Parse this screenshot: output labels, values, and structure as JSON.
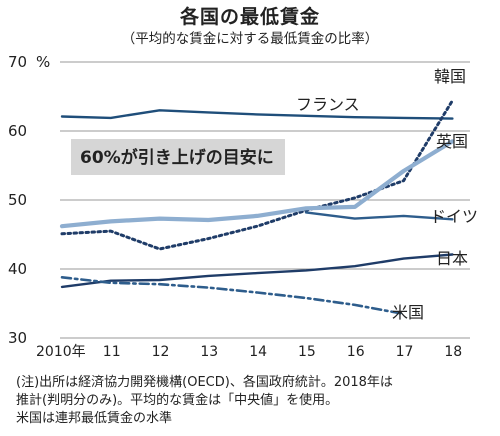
{
  "title": "各国の最低賃金",
  "subtitle": "（平均的な賃金に対する最低賃金の比率）",
  "notes": [
    "(注)出所は経済協力開発機構(OECD)、各国政府統計。2018年は",
    "推計(判明分のみ)。平均的な賃金は「中央値」を使用。",
    "米国は連邦最低賃金の水準"
  ],
  "chart_data": {
    "type": "line",
    "title": "各国の最低賃金",
    "subtitle": "（平均的な賃金に対する最低賃金の比率）",
    "ylabel": "%",
    "ylim": [
      30,
      70
    ],
    "yticks": [
      30,
      40,
      50,
      60,
      70
    ],
    "x": [
      2010,
      2011,
      2012,
      2013,
      2014,
      2015,
      2016,
      2017,
      2018
    ],
    "xtick_labels": [
      "2010年",
      "11",
      "12",
      "13",
      "14",
      "15",
      "16",
      "17",
      "18"
    ],
    "grid": "horizontal",
    "annotation": "60%が引き上げの目安に",
    "series": [
      {
        "name": "フランス",
        "color": "#1f4e7a",
        "style": "solid",
        "values": [
          62.1,
          61.9,
          63.0,
          62.7,
          62.4,
          62.2,
          62.0,
          61.9,
          61.8
        ]
      },
      {
        "name": "韓国",
        "color": "#1f3c68",
        "style": "dotted",
        "values": [
          45.1,
          45.5,
          42.9,
          44.4,
          46.2,
          48.5,
          50.3,
          52.8,
          64.4
        ]
      },
      {
        "name": "英国",
        "color": "#8eaed0",
        "style": "solid-thick",
        "values": [
          46.2,
          46.9,
          47.3,
          47.1,
          47.7,
          48.8,
          49.0,
          54.2,
          58.5
        ]
      },
      {
        "name": "ドイツ",
        "color": "#2e5d8c",
        "style": "solid",
        "values": [
          null,
          null,
          null,
          null,
          null,
          48.2,
          47.3,
          47.7,
          47.2
        ]
      },
      {
        "name": "日本",
        "color": "#1f3c68",
        "style": "solid",
        "values": [
          37.4,
          38.3,
          38.4,
          39.0,
          39.4,
          39.8,
          40.4,
          41.5,
          42.1
        ]
      },
      {
        "name": "米国",
        "color": "#2e5d8c",
        "style": "dashdot",
        "values": [
          38.8,
          38.0,
          37.8,
          37.3,
          36.6,
          35.8,
          34.8,
          33.5,
          null
        ]
      }
    ]
  }
}
